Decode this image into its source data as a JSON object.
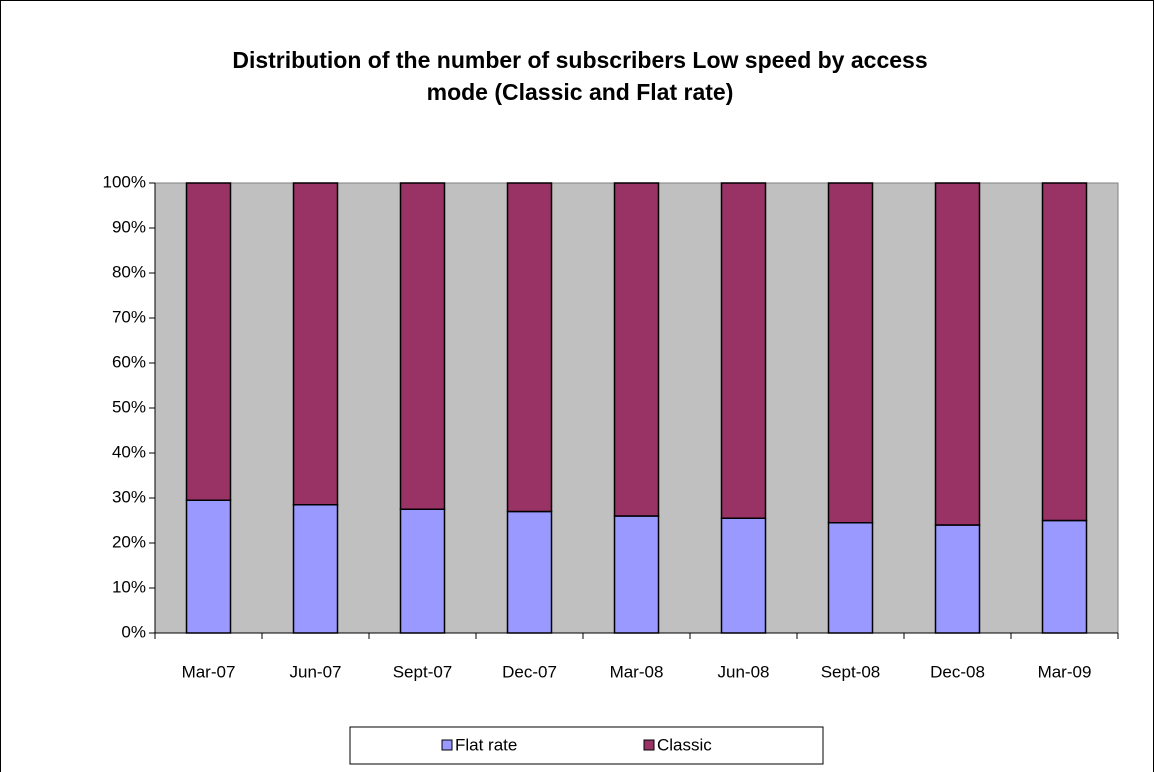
{
  "chart_data": {
    "type": "bar",
    "stacked": true,
    "title": "Distribution of the number of subscribers Low speed by access mode (Classic and Flat rate)",
    "categories": [
      "Mar-07",
      "Jun-07",
      "Sept-07",
      "Dec-07",
      "Mar-08",
      "Jun-08",
      "Sept-08",
      "Dec-08",
      "Mar-09"
    ],
    "series": [
      {
        "name": "Flat rate",
        "color": "#9999ff",
        "values": [
          29.5,
          28.5,
          27.5,
          27,
          26,
          25.5,
          24.5,
          24,
          25
        ]
      },
      {
        "name": "Classic",
        "color": "#993366",
        "values": [
          70.5,
          71.5,
          72.5,
          73,
          74,
          74.5,
          75.5,
          76,
          75
        ]
      }
    ],
    "ylim": [
      0,
      100
    ],
    "yticks": [
      {
        "value": 0,
        "label": "0%"
      },
      {
        "value": 10,
        "label": "10%"
      },
      {
        "value": 20,
        "label": "20%"
      },
      {
        "value": 30,
        "label": "30%"
      },
      {
        "value": 40,
        "label": "40%"
      },
      {
        "value": 50,
        "label": "50%"
      },
      {
        "value": 60,
        "label": "60%"
      },
      {
        "value": 70,
        "label": "70%"
      },
      {
        "value": 80,
        "label": "80%"
      },
      {
        "value": 90,
        "label": "90%"
      },
      {
        "value": 100,
        "label": "100%"
      }
    ],
    "plot_background": "#c0c0c0",
    "legend": "bottom"
  }
}
